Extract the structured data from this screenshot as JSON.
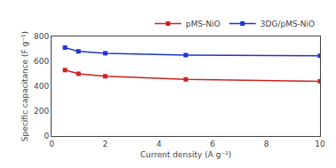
{
  "chart_data": {
    "type": "line",
    "x": [
      0.5,
      1,
      2,
      5,
      10
    ],
    "series": [
      {
        "name": "pMS-NiO",
        "color": "#cc2222",
        "values": [
          530,
          500,
          480,
          455,
          440
        ]
      },
      {
        "name": "3DG/pMS-NiO",
        "color": "#2233cc",
        "values": [
          710,
          680,
          665,
          650,
          645
        ]
      }
    ],
    "xlabel": "Current density (A g⁻¹)",
    "ylabel": "Specific capacitance (F g⁻¹)",
    "xlim": [
      0,
      10
    ],
    "ylim": [
      0,
      800
    ],
    "xticks": [
      0,
      2,
      4,
      6,
      8,
      10
    ],
    "yticks": [
      0,
      200,
      400,
      600,
      800
    ],
    "marker": "square",
    "legend": "upper right",
    "grid": false
  }
}
